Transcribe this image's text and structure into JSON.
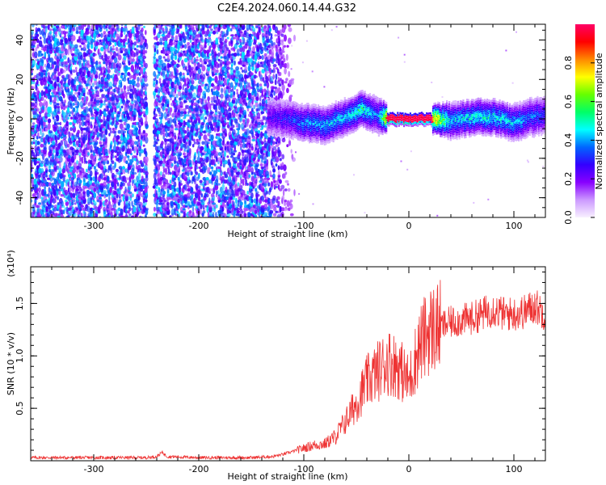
{
  "title": "C2E4.2024.060.14.44.G32",
  "chart_data": [
    {
      "type": "heatmap",
      "xlabel": "Height of straight line (km)",
      "ylabel": "Frequency (Hz)",
      "xlim": [
        -360,
        130
      ],
      "ylim": [
        -50,
        48
      ],
      "xticks": [
        -300,
        -200,
        -100,
        0,
        100
      ],
      "xtick_labels": [
        "-300",
        "-200",
        "-100",
        "0",
        "100"
      ],
      "yticks": [
        40,
        20,
        0,
        -20,
        -40
      ],
      "ytick_labels": [
        "40",
        "20",
        "0",
        "-20",
        "-40"
      ],
      "colorbar": {
        "label": "Normalized spectral amplitude",
        "range": [
          0,
          1
        ],
        "ticks": [
          0.0,
          0.2,
          0.4,
          0.6,
          0.8
        ],
        "tick_labels": [
          "0.0",
          "0.2",
          "0.4",
          "0.6",
          "0.8"
        ],
        "colors": [
          "#f8f0ff",
          "#cc99ff",
          "#8800ff",
          "#3300ff",
          "#0066ff",
          "#00ffff",
          "#00ff66",
          "#66ff00",
          "#ffff00",
          "#ff8800",
          "#ff0000",
          "#ff0066"
        ]
      },
      "noise_region_x": [
        -360,
        -125
      ],
      "signal_trace": {
        "x": [
          -135,
          -120,
          -100,
          -80,
          -60,
          -45,
          -30,
          -20,
          -10,
          0,
          20,
          40,
          60,
          80,
          100,
          115,
          130
        ],
        "y": [
          1,
          0,
          -2,
          -3,
          1,
          5,
          2,
          0,
          0,
          0,
          0,
          -1,
          1,
          1,
          -2,
          1,
          2
        ],
        "amplitude": [
          0.25,
          0.3,
          0.4,
          0.45,
          0.45,
          0.55,
          0.35,
          1.0,
          1.0,
          1.0,
          0.95,
          0.45,
          0.5,
          0.5,
          0.45,
          0.4,
          0.35
        ]
      },
      "grid": false
    },
    {
      "type": "line",
      "xlabel": "Height of straight line (km)",
      "ylabel": "SNR (10 * v/v)",
      "y_multiplier": "(x10⁴)",
      "xlim": [
        -360,
        130
      ],
      "ylim": [
        0,
        18500
      ],
      "xticks": [
        -300,
        -200,
        -100,
        0,
        100
      ],
      "xtick_labels": [
        "-300",
        "-200",
        "-100",
        "0",
        "100"
      ],
      "yticks": [
        5000,
        10000,
        15000
      ],
      "ytick_labels": [
        "0.5",
        "1.0",
        "1.5"
      ],
      "color": "#ee3333",
      "series": [
        {
          "x": [
            -360,
            -300,
            -250,
            -240,
            -235,
            -230,
            -200,
            -150,
            -130,
            -120,
            -110,
            -100,
            -90,
            -80,
            -70,
            -60,
            -50,
            -40,
            -30,
            -20,
            -10,
            0,
            10,
            20,
            30,
            40,
            50,
            60,
            70,
            80,
            90,
            100,
            110,
            120,
            130
          ],
          "y": [
            300,
            300,
            300,
            400,
            800,
            400,
            300,
            300,
            400,
            600,
            900,
            1200,
            1500,
            1600,
            2300,
            3800,
            5500,
            7500,
            8500,
            9500,
            9000,
            7500,
            11000,
            12500,
            12800,
            13200,
            13400,
            13600,
            14000,
            14500,
            14000,
            14000,
            14200,
            14800,
            14000
          ]
        }
      ],
      "grid": false
    }
  ]
}
